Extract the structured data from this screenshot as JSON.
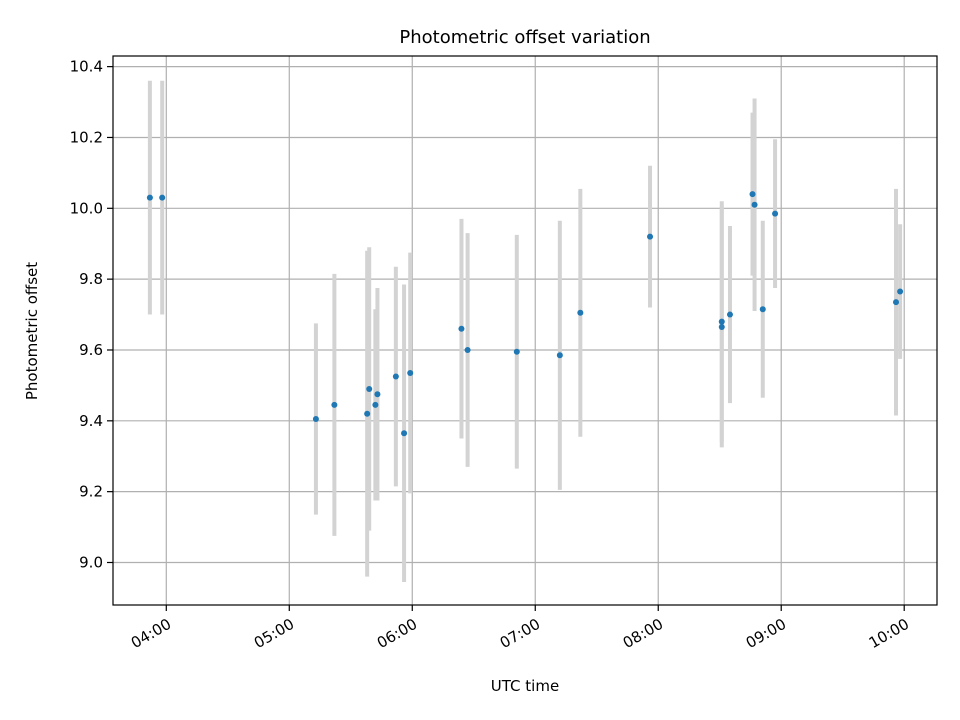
{
  "chart_data": {
    "type": "scatter",
    "title": "Photometric offset variation",
    "xlabel": "UTC time",
    "ylabel": "Photometric offset",
    "x_axis": {
      "type": "time",
      "range": [
        "03:34",
        "10:16"
      ],
      "ticks": [
        "04:00",
        "05:00",
        "06:00",
        "07:00",
        "08:00",
        "09:00",
        "10:00"
      ]
    },
    "y_axis": {
      "range": [
        8.88,
        10.43
      ],
      "ticks": [
        "9.0",
        "9.2",
        "9.4",
        "9.6",
        "9.8",
        "10.0",
        "10.2",
        "10.4"
      ]
    },
    "grid": true,
    "legend": "none",
    "colors": {
      "points": "#1f77b4",
      "errorbars": "#d3d3d3",
      "grid": "#b0b0b0"
    },
    "points": [
      {
        "x": "03:52",
        "y": 10.03,
        "err": 0.33
      },
      {
        "x": "03:58",
        "y": 10.03,
        "err": 0.33
      },
      {
        "x": "05:13",
        "y": 9.405,
        "err": 0.27
      },
      {
        "x": "05:22",
        "y": 9.445,
        "err": 0.37
      },
      {
        "x": "05:38",
        "y": 9.42,
        "err": 0.46
      },
      {
        "x": "05:39",
        "y": 9.49,
        "err": 0.4
      },
      {
        "x": "05:42",
        "y": 9.445,
        "err": 0.27
      },
      {
        "x": "05:43",
        "y": 9.475,
        "err": 0.3
      },
      {
        "x": "05:52",
        "y": 9.525,
        "err": 0.31
      },
      {
        "x": "05:56",
        "y": 9.365,
        "err": 0.42
      },
      {
        "x": "05:59",
        "y": 9.535,
        "err": 0.34
      },
      {
        "x": "06:24",
        "y": 9.66,
        "err": 0.31
      },
      {
        "x": "06:27",
        "y": 9.6,
        "err": 0.33
      },
      {
        "x": "06:51",
        "y": 9.595,
        "err": 0.33
      },
      {
        "x": "07:12",
        "y": 9.585,
        "err": 0.38
      },
      {
        "x": "07:22",
        "y": 9.705,
        "err": 0.35
      },
      {
        "x": "07:56",
        "y": 9.92,
        "err": 0.2
      },
      {
        "x": "08:31",
        "y": 9.665,
        "err": 0.34
      },
      {
        "x": "08:31",
        "y": 9.68,
        "err": 0.34
      },
      {
        "x": "08:35",
        "y": 9.7,
        "err": 0.25
      },
      {
        "x": "08:46",
        "y": 10.04,
        "err": 0.23
      },
      {
        "x": "08:47",
        "y": 10.01,
        "err": 0.3
      },
      {
        "x": "08:51",
        "y": 9.715,
        "err": 0.25
      },
      {
        "x": "08:57",
        "y": 9.985,
        "err": 0.21
      },
      {
        "x": "09:56",
        "y": 9.735,
        "err": 0.32
      },
      {
        "x": "09:58",
        "y": 9.765,
        "err": 0.19
      }
    ]
  }
}
